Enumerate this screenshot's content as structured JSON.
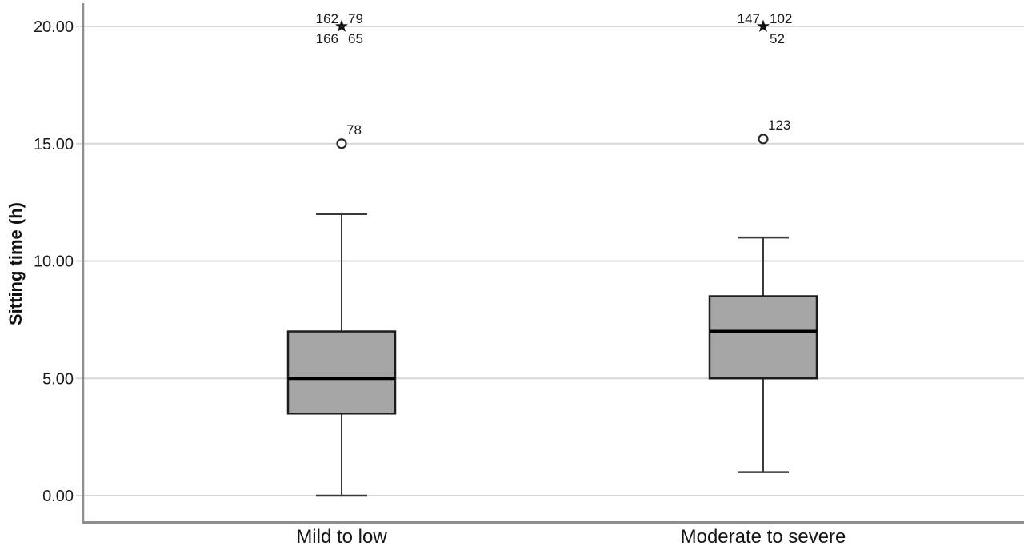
{
  "chart_data": {
    "type": "boxplot",
    "title": "",
    "ylabel": "Sitting time (h)",
    "xlabel": "",
    "ylim": [
      0,
      20
    ],
    "yticks": [
      0,
      5,
      10,
      15,
      20
    ],
    "ytick_labels": [
      "0.00",
      "5.00",
      "10.00",
      "15.00",
      "20.00"
    ],
    "grid": "horizontal",
    "categories": [
      "Mild to low",
      "Moderate to severe"
    ],
    "series": [
      {
        "category": "Mild to low",
        "whisker_min": 0,
        "q1": 3.5,
        "median": 5,
        "q3": 7,
        "whisker_max": 12,
        "outliers": [
          {
            "marker": "circle",
            "value": 15,
            "labels": [
              {
                "text": "78",
                "pos": "above-right"
              }
            ]
          },
          {
            "marker": "star",
            "value": 20,
            "labels": [
              {
                "text": "162",
                "pos": "above-left"
              },
              {
                "text": "79",
                "pos": "above-right"
              },
              {
                "text": "166",
                "pos": "below-left"
              },
              {
                "text": "65",
                "pos": "below-right"
              }
            ]
          }
        ]
      },
      {
        "category": "Moderate to severe",
        "whisker_min": 1,
        "q1": 5,
        "median": 7,
        "q3": 8.5,
        "whisker_max": 11,
        "outliers": [
          {
            "marker": "circle",
            "value": 15.2,
            "labels": [
              {
                "text": "123",
                "pos": "above-right"
              }
            ]
          },
          {
            "marker": "star",
            "value": 20,
            "labels": [
              {
                "text": "147",
                "pos": "above-left"
              },
              {
                "text": "102",
                "pos": "above-right"
              },
              {
                "text": "52",
                "pos": "below-right"
              }
            ]
          }
        ]
      }
    ],
    "colors": {
      "box_fill": "#a6a6a6",
      "box_border": "#1c1c1c",
      "median": "#000000",
      "whisker": "#3a3a3a",
      "gridline": "#d7d7d7",
      "axis": "#8e8e8e",
      "marker": "#111111",
      "text": "#1a1a1a",
      "background": "#ffffff"
    }
  }
}
